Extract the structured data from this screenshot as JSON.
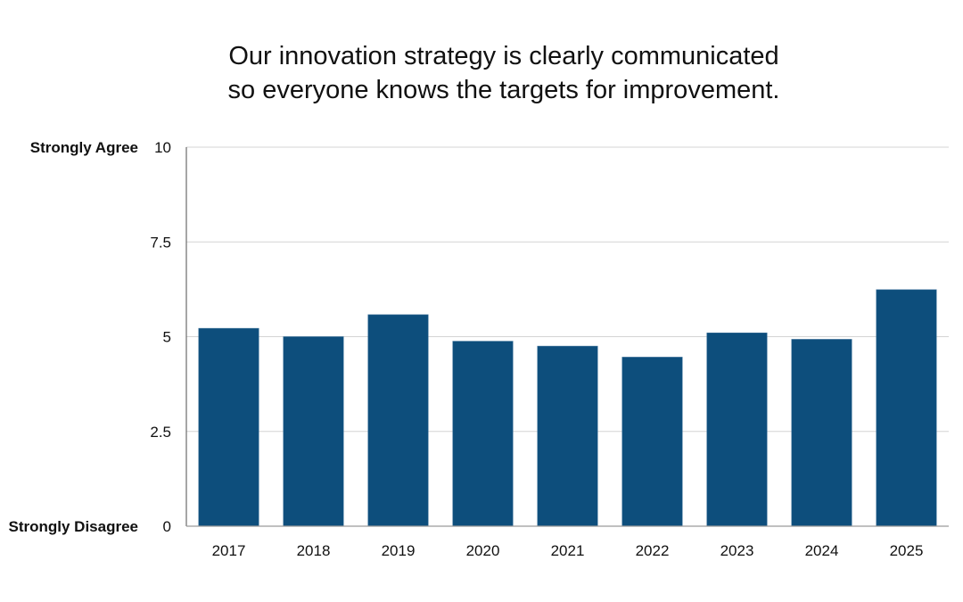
{
  "chart_data": {
    "type": "bar",
    "title": "Our innovation strategy is clearly communicated so everyone knows the targets for improvement.",
    "title_lines": [
      "Our innovation strategy is clearly communicated",
      "so everyone knows the targets for improvement."
    ],
    "categories": [
      "2017",
      "2018",
      "2019",
      "2020",
      "2021",
      "2022",
      "2023",
      "2024",
      "2025"
    ],
    "values": [
      5.22,
      5.0,
      5.58,
      4.88,
      4.75,
      4.46,
      5.1,
      4.93,
      6.24
    ],
    "xlabel": "",
    "ylabel": "",
    "ylim": [
      0,
      10
    ],
    "yticks": [
      0,
      2.5,
      5,
      7.5,
      10
    ],
    "ytick_labels": [
      "0",
      "2.5",
      "5",
      "7.5",
      "10"
    ],
    "y_annotations": [
      {
        "value": 10,
        "text": "Strongly Agree"
      },
      {
        "value": 0,
        "text": "Strongly Disagree"
      }
    ],
    "reference_line": {
      "value": 5,
      "color": "#e8262a",
      "style": "rough"
    },
    "bar_color": "#0d4e7c",
    "grid": true,
    "legend": "none"
  }
}
